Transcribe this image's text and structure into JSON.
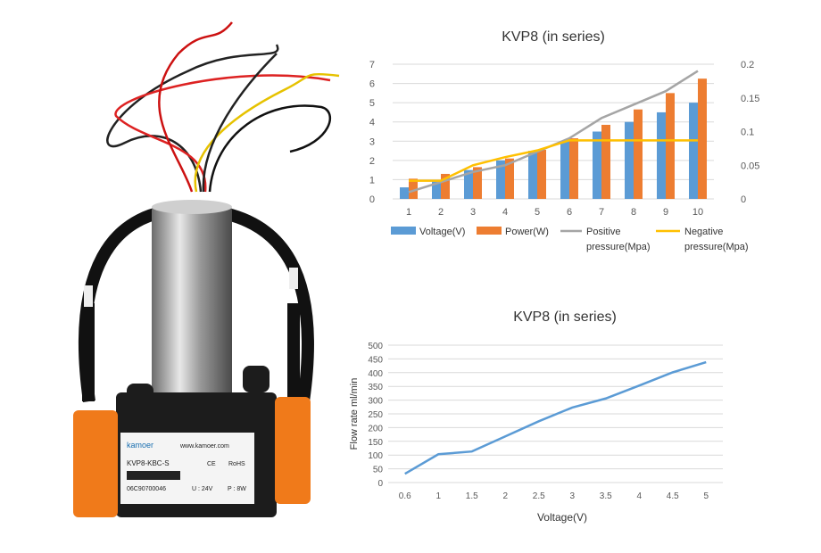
{
  "product_label": {
    "brand": "kamoer",
    "website": "www.kamoer.com",
    "model": "KVP8-KBC-S",
    "ce": "CE",
    "rohs": "RoHS",
    "serial": "06C90700046",
    "voltage": "U : 24V",
    "power": "P : 8W"
  },
  "colors": {
    "voltage": "#5b9bd5",
    "power": "#ed7d31",
    "positive": "#a5a5a5",
    "negative": "#ffc000",
    "flow": "#5b9bd5",
    "pump_orange": "#f07a1a",
    "pump_black": "#1c1c1c"
  },
  "chart_data": [
    {
      "type": "bar",
      "title": "KVP8 (in series)",
      "categories": [
        "1",
        "2",
        "3",
        "4",
        "5",
        "6",
        "7",
        "8",
        "9",
        "10"
      ],
      "series": [
        {
          "name": "Voltage(V)",
          "kind": "bar",
          "axis": "left",
          "values": [
            0.6,
            0.9,
            1.5,
            2.0,
            2.5,
            3.0,
            3.5,
            4.0,
            4.5,
            5.0
          ]
        },
        {
          "name": "Power(W)",
          "kind": "bar",
          "axis": "left",
          "values": [
            1.05,
            1.3,
            1.65,
            2.1,
            2.55,
            3.15,
            3.85,
            4.65,
            5.5,
            6.25
          ]
        },
        {
          "name": "Positive pressure(Mpa)",
          "kind": "line",
          "axis": "right",
          "values": [
            0.01,
            0.025,
            0.04,
            0.05,
            0.07,
            0.09,
            0.12,
            0.14,
            0.16,
            0.19
          ]
        },
        {
          "name": "Negative pressure(Mpa)",
          "kind": "line",
          "axis": "right",
          "values": [
            0.027,
            0.027,
            0.05,
            0.062,
            0.072,
            0.087,
            0.087,
            0.087,
            0.087,
            0.087
          ]
        }
      ],
      "legend_labels": [
        "Voltage(V)",
        "Power(W)",
        "Positive",
        "pressure(Mpa)",
        "Negative",
        "pressure(Mpa)"
      ],
      "ylim": [
        0,
        7
      ],
      "yticks": [
        "0",
        "1",
        "2",
        "3",
        "4",
        "5",
        "6",
        "7"
      ],
      "y2lim": [
        0,
        0.2
      ],
      "y2ticks": [
        "0",
        "0.05",
        "0.1",
        "0.15",
        "0.2"
      ],
      "grid": true,
      "legend_position": "bottom"
    },
    {
      "type": "line",
      "title": "KVP8 (in series)",
      "x": [
        "0.6",
        "1",
        "1.5",
        "2",
        "2.5",
        "3",
        "3.5",
        "4",
        "4.5",
        "5"
      ],
      "series": [
        {
          "values": [
            32,
            103,
            113,
            168,
            223,
            273,
            306,
            353,
            401,
            438
          ]
        }
      ],
      "xlabel": "Voltage(V)",
      "ylabel": "Flow rate  ml/min",
      "ylim": [
        0,
        500
      ],
      "yticks": [
        "0",
        "50",
        "100",
        "150",
        "200",
        "250",
        "300",
        "350",
        "400",
        "450",
        "500"
      ],
      "grid": true
    }
  ]
}
